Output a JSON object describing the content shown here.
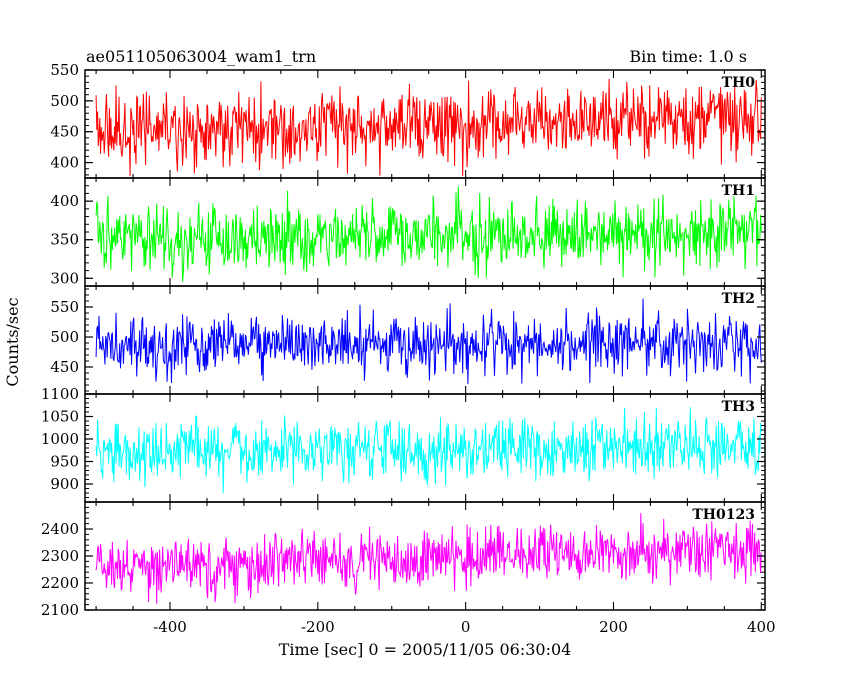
{
  "chart_data": {
    "type": "line",
    "title": "ae051105063004_wam1_trn",
    "subtitle": "Bin time: 1.0 s",
    "xlabel": "Time [sec] 0 = 2005/11/05 06:30:04",
    "ylabel": "Counts/sec",
    "xlim": [
      -515,
      405
    ],
    "x_range_data": [
      -500,
      400
    ],
    "xticks": [
      -400,
      -200,
      0,
      200,
      400
    ],
    "bin_time_s": 1.0,
    "panels": [
      {
        "name": "TH0",
        "color": "#ff0000",
        "ylim": [
          375,
          550
        ],
        "yticks": [
          400,
          450,
          500,
          550
        ],
        "mean_start": 450,
        "mean_end": 470,
        "amplitude": 30,
        "range_observed": [
          378,
          548
        ]
      },
      {
        "name": "TH1",
        "color": "#00ff00",
        "ylim": [
          290,
          430
        ],
        "yticks": [
          300,
          350,
          400
        ],
        "mean_start": 350,
        "mean_end": 362,
        "amplitude": 22,
        "range_observed": [
          293,
          428
        ]
      },
      {
        "name": "TH2",
        "color": "#0000ff",
        "ylim": [
          405,
          585
        ],
        "yticks": [
          450,
          500,
          550
        ],
        "mean_start": 487,
        "mean_end": 490,
        "amplitude": 26,
        "range_observed": [
          410,
          582
        ]
      },
      {
        "name": "TH3",
        "color": "#00ffff",
        "ylim": [
          860,
          1100
        ],
        "yticks": [
          900,
          950,
          1000,
          1050,
          1100
        ],
        "mean_start": 970,
        "mean_end": 985,
        "amplitude": 35,
        "range_observed": [
          880,
          1095
        ]
      },
      {
        "name": "TH0123",
        "color": "#ff00ff",
        "ylim": [
          2100,
          2500
        ],
        "yticks": [
          2100,
          2200,
          2300,
          2400
        ],
        "mean_start": 2255,
        "mean_end": 2330,
        "amplitude": 55,
        "range_observed": [
          2105,
          2490
        ]
      }
    ]
  }
}
